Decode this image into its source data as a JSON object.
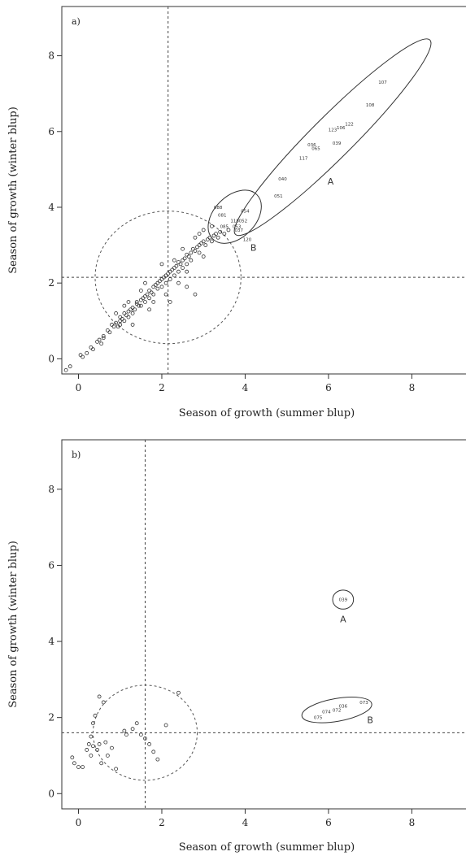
{
  "chart_data": [
    {
      "type": "scatter",
      "panel_label": "a)",
      "xlabel": "Season of growth (summer blup)",
      "ylabel": "Season of growth (winter blup)",
      "xlim": [
        -0.4,
        9.3
      ],
      "ylim": [
        -0.4,
        9.3
      ],
      "xticks": [
        0,
        2,
        4,
        6,
        8
      ],
      "yticks": [
        0,
        2,
        4,
        6,
        8
      ],
      "grid": false,
      "reference_lines": {
        "x": 2.15,
        "y": 2.15
      },
      "circle": {
        "cx": 2.15,
        "cy": 2.15,
        "r": 1.75
      },
      "points": [
        [
          -0.3,
          -0.3
        ],
        [
          -0.2,
          -0.2
        ],
        [
          0.05,
          0.1
        ],
        [
          0.1,
          0.05
        ],
        [
          0.2,
          0.15
        ],
        [
          0.3,
          0.3
        ],
        [
          0.35,
          0.25
        ],
        [
          0.45,
          0.45
        ],
        [
          0.5,
          0.5
        ],
        [
          0.55,
          0.4
        ],
        [
          0.6,
          0.6
        ],
        [
          0.7,
          0.75
        ],
        [
          0.75,
          0.7
        ],
        [
          0.8,
          0.9
        ],
        [
          0.85,
          0.85
        ],
        [
          0.9,
          0.95
        ],
        [
          0.95,
          0.85
        ],
        [
          1.0,
          1.0
        ],
        [
          1.0,
          1.1
        ],
        [
          1.05,
          1.05
        ],
        [
          1.1,
          1.0
        ],
        [
          1.1,
          1.2
        ],
        [
          1.15,
          1.15
        ],
        [
          1.2,
          1.25
        ],
        [
          1.2,
          1.1
        ],
        [
          1.25,
          1.3
        ],
        [
          1.3,
          1.2
        ],
        [
          1.3,
          1.35
        ],
        [
          1.35,
          1.3
        ],
        [
          1.4,
          1.45
        ],
        [
          1.4,
          1.5
        ],
        [
          1.45,
          1.4
        ],
        [
          1.5,
          1.55
        ],
        [
          1.5,
          1.4
        ],
        [
          1.55,
          1.6
        ],
        [
          1.6,
          1.65
        ],
        [
          1.6,
          1.5
        ],
        [
          1.65,
          1.7
        ],
        [
          1.7,
          1.6
        ],
        [
          1.7,
          1.8
        ],
        [
          1.75,
          1.75
        ],
        [
          1.8,
          1.9
        ],
        [
          1.8,
          1.7
        ],
        [
          1.85,
          1.95
        ],
        [
          1.9,
          1.85
        ],
        [
          1.9,
          2.0
        ],
        [
          1.95,
          2.05
        ],
        [
          2.0,
          1.9
        ],
        [
          2.0,
          2.1
        ],
        [
          2.05,
          2.15
        ],
        [
          2.1,
          2.0
        ],
        [
          2.1,
          2.2
        ],
        [
          2.15,
          2.25
        ],
        [
          2.2,
          2.1
        ],
        [
          2.2,
          2.3
        ],
        [
          2.25,
          2.35
        ],
        [
          2.3,
          2.2
        ],
        [
          2.3,
          2.4
        ],
        [
          2.35,
          2.45
        ],
        [
          2.4,
          2.3
        ],
        [
          2.4,
          2.55
        ],
        [
          2.45,
          2.5
        ],
        [
          2.5,
          2.6
        ],
        [
          2.5,
          2.4
        ],
        [
          2.55,
          2.65
        ],
        [
          2.6,
          2.5
        ],
        [
          2.6,
          2.75
        ],
        [
          2.65,
          2.7
        ],
        [
          2.7,
          2.8
        ],
        [
          2.7,
          2.6
        ],
        [
          2.75,
          2.9
        ],
        [
          2.8,
          2.85
        ],
        [
          2.85,
          2.95
        ],
        [
          2.9,
          3.0
        ],
        [
          2.9,
          2.8
        ],
        [
          2.95,
          3.05
        ],
        [
          3.0,
          3.1
        ],
        [
          3.05,
          3.0
        ],
        [
          3.1,
          3.15
        ],
        [
          3.15,
          3.2
        ],
        [
          3.2,
          3.1
        ],
        [
          3.25,
          3.25
        ],
        [
          3.3,
          3.3
        ],
        [
          3.35,
          3.2
        ],
        [
          3.4,
          3.35
        ],
        [
          3.5,
          3.3
        ],
        [
          3.6,
          3.4
        ],
        [
          0.6,
          0.55
        ],
        [
          1.0,
          0.9
        ],
        [
          1.5,
          1.8
        ],
        [
          1.8,
          1.5
        ],
        [
          2.1,
          1.7
        ],
        [
          2.4,
          2.0
        ],
        [
          2.6,
          1.9
        ],
        [
          2.8,
          1.7
        ],
        [
          2.3,
          2.6
        ],
        [
          1.2,
          1.5
        ],
        [
          1.6,
          2.0
        ],
        [
          2.0,
          2.5
        ],
        [
          2.5,
          2.9
        ],
        [
          2.8,
          3.2
        ],
        [
          3.0,
          3.4
        ],
        [
          3.2,
          3.5
        ],
        [
          1.3,
          0.9
        ],
        [
          0.9,
          1.2
        ],
        [
          1.7,
          1.3
        ],
        [
          2.2,
          1.5
        ],
        [
          2.6,
          2.3
        ],
        [
          3.0,
          2.7
        ],
        [
          2.9,
          3.3
        ],
        [
          1.1,
          1.4
        ]
      ],
      "labeled_points": [
        {
          "label": "107",
          "x": 7.3,
          "y": 7.3
        },
        {
          "label": "108",
          "x": 7.0,
          "y": 6.7
        },
        {
          "label": "122",
          "x": 6.5,
          "y": 6.2
        },
        {
          "label": "106",
          "x": 6.3,
          "y": 6.1
        },
        {
          "label": "123",
          "x": 6.1,
          "y": 6.05
        },
        {
          "label": "039",
          "x": 6.2,
          "y": 5.7
        },
        {
          "label": "036",
          "x": 5.6,
          "y": 5.65
        },
        {
          "label": "065",
          "x": 5.7,
          "y": 5.55
        },
        {
          "label": "117",
          "x": 5.4,
          "y": 5.3
        },
        {
          "label": "040",
          "x": 4.9,
          "y": 4.75
        },
        {
          "label": "051",
          "x": 4.8,
          "y": 4.3
        },
        {
          "label": "088",
          "x": 3.35,
          "y": 4.0
        },
        {
          "label": "054",
          "x": 4.0,
          "y": 3.9
        },
        {
          "label": "081",
          "x": 3.45,
          "y": 3.8
        },
        {
          "label": "118",
          "x": 3.75,
          "y": 3.65
        },
        {
          "label": "052",
          "x": 3.95,
          "y": 3.65
        },
        {
          "label": "085",
          "x": 3.5,
          "y": 3.5
        },
        {
          "label": "053",
          "x": 3.8,
          "y": 3.5
        },
        {
          "label": "037",
          "x": 3.85,
          "y": 3.4
        },
        {
          "label": "120",
          "x": 4.05,
          "y": 3.15
        }
      ],
      "groups": [
        {
          "label": "A",
          "cx": 6.1,
          "cy": 5.85,
          "rx": 3.3,
          "ry": 0.55,
          "angle_deg": 45,
          "label_x": 6.05,
          "label_y": 4.6
        },
        {
          "label": "B",
          "cx": 3.75,
          "cy": 3.75,
          "rx": 0.75,
          "ry": 0.55,
          "angle_deg": 45,
          "label_x": 4.2,
          "label_y": 2.85
        }
      ]
    },
    {
      "type": "scatter",
      "panel_label": "b)",
      "xlabel": "Season of growth (summer blup)",
      "ylabel": "Season of growth (winter blup)",
      "xlim": [
        -0.4,
        9.3
      ],
      "ylim": [
        -0.4,
        9.3
      ],
      "xticks": [
        0,
        2,
        4,
        6,
        8
      ],
      "yticks": [
        0,
        2,
        4,
        6,
        8
      ],
      "grid": false,
      "reference_lines": {
        "x": 1.6,
        "y": 1.6
      },
      "circle": {
        "cx": 1.6,
        "cy": 1.6,
        "r": 1.25
      },
      "points": [
        [
          -0.15,
          0.95
        ],
        [
          -0.1,
          0.8
        ],
        [
          0.0,
          0.7
        ],
        [
          0.1,
          0.7
        ],
        [
          0.2,
          1.15
        ],
        [
          0.3,
          1.0
        ],
        [
          0.35,
          1.25
        ],
        [
          0.3,
          1.5
        ],
        [
          0.35,
          1.85
        ],
        [
          0.4,
          2.05
        ],
        [
          0.5,
          2.55
        ],
        [
          0.6,
          2.4
        ],
        [
          0.5,
          1.3
        ],
        [
          0.55,
          0.8
        ],
        [
          0.65,
          1.35
        ],
        [
          0.7,
          1.0
        ],
        [
          0.8,
          1.2
        ],
        [
          0.9,
          0.65
        ],
        [
          1.1,
          1.65
        ],
        [
          1.15,
          1.55
        ],
        [
          1.3,
          1.7
        ],
        [
          1.4,
          1.85
        ],
        [
          1.6,
          1.45
        ],
        [
          1.7,
          1.3
        ],
        [
          1.8,
          1.1
        ],
        [
          1.9,
          0.9
        ],
        [
          2.1,
          1.8
        ],
        [
          2.4,
          2.65
        ],
        [
          1.5,
          1.55
        ],
        [
          0.45,
          1.15
        ],
        [
          0.25,
          1.3
        ]
      ],
      "labeled_points": [
        {
          "label": "039",
          "x": 6.35,
          "y": 5.1
        },
        {
          "label": "073",
          "x": 6.85,
          "y": 2.4
        },
        {
          "label": "036",
          "x": 6.35,
          "y": 2.3
        },
        {
          "label": "072",
          "x": 6.2,
          "y": 2.2
        },
        {
          "label": "074",
          "x": 5.95,
          "y": 2.15
        },
        {
          "label": "075",
          "x": 5.75,
          "y": 2.0
        }
      ],
      "groups": [
        {
          "label": "A",
          "cx": 6.35,
          "cy": 5.1,
          "rx": 0.25,
          "ry": 0.25,
          "angle_deg": 0,
          "label_x": 6.35,
          "label_y": 4.5
        },
        {
          "label": "B",
          "cx": 6.2,
          "cy": 2.2,
          "rx": 0.85,
          "ry": 0.3,
          "angle_deg": 10,
          "label_x": 7.0,
          "label_y": 1.85
        }
      ]
    }
  ]
}
